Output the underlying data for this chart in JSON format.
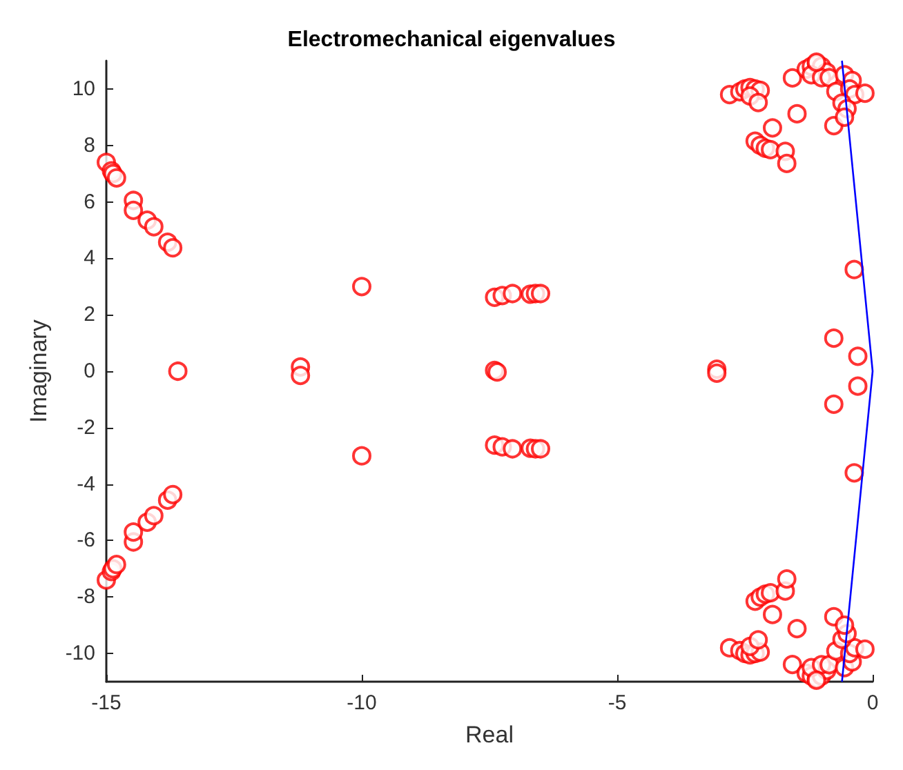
{
  "chart_data": {
    "type": "scatter",
    "title": "Electromechanical eigenvalues",
    "xlabel": "Real",
    "ylabel": "Imaginary",
    "xlim": [
      -15,
      0
    ],
    "xticks": [
      -15,
      -10,
      -5,
      0
    ],
    "ylim": [
      -11,
      11
    ],
    "yticks": [
      -10,
      -8,
      -6,
      -4,
      -2,
      0,
      2,
      4,
      6,
      8,
      10
    ],
    "marker": "circle",
    "series": [
      {
        "color": "#ff0000",
        "x": [
          -15.0,
          -14.9,
          -14.87,
          -14.8,
          -14.47,
          -14.47,
          -14.2,
          -14.07,
          -13.8,
          -13.7,
          -13.6,
          -11.2,
          -10.0,
          -7.4,
          -7.25,
          -7.05,
          -6.7,
          -6.6,
          -6.5,
          -7.4,
          -7.35,
          -3.05,
          -2.8,
          -2.6,
          -2.5,
          -2.4,
          -2.3,
          -2.2,
          -2.4,
          -2.24,
          -1.96,
          -1.48,
          -2.3,
          -2.2,
          -2.1,
          -2.0,
          -1.71,
          -1.68,
          -1.57,
          -1.3,
          -1.2,
          -1.1,
          -1.0,
          -0.9,
          -1.2,
          -1.0,
          -0.85,
          -1.1,
          -0.72,
          -0.76,
          -0.55,
          -0.4,
          -0.45,
          -0.35,
          -0.15,
          -0.6,
          -0.5,
          -0.55,
          -0.36,
          -0.76,
          -0.29,
          -15.0,
          -14.9,
          -14.87,
          -14.8,
          -14.47,
          -14.47,
          -14.2,
          -14.07,
          -13.8,
          -13.7,
          -11.2,
          -10.0,
          -7.4,
          -7.25,
          -7.05,
          -6.7,
          -6.6,
          -6.5,
          -3.05,
          -2.8,
          -2.6,
          -2.5,
          -2.4,
          -2.3,
          -2.2,
          -2.4,
          -2.24,
          -1.96,
          -1.48,
          -2.3,
          -2.2,
          -2.1,
          -2.0,
          -1.71,
          -1.68,
          -1.57,
          -1.3,
          -1.2,
          -1.1,
          -1.0,
          -0.9,
          -1.2,
          -1.0,
          -0.85,
          -1.1,
          -0.72,
          -0.76,
          -0.55,
          -0.4,
          -0.45,
          -0.35,
          -0.15,
          -0.6,
          -0.5,
          -0.55,
          -0.36,
          -0.76,
          -0.29
        ],
        "values": [
          7.4,
          7.1,
          7.0,
          6.85,
          6.05,
          5.7,
          5.35,
          5.12,
          4.57,
          4.37,
          0,
          0.15,
          3.0,
          2.62,
          2.68,
          2.75,
          2.73,
          2.75,
          2.75,
          0.03,
          -0.03,
          0.07,
          9.8,
          9.9,
          10.0,
          10.05,
          10.0,
          9.95,
          9.75,
          9.52,
          8.62,
          9.12,
          8.15,
          8.0,
          7.9,
          7.85,
          7.79,
          7.36,
          10.39,
          10.7,
          10.8,
          10.9,
          10.8,
          10.6,
          10.5,
          10.4,
          10.4,
          10.95,
          9.91,
          8.7,
          10.5,
          10.3,
          10.0,
          9.8,
          9.85,
          9.5,
          9.3,
          9.0,
          3.6,
          1.17,
          0.53,
          -7.4,
          -7.1,
          -7.0,
          -6.85,
          -6.05,
          -5.7,
          -5.35,
          -5.12,
          -4.57,
          -4.37,
          -0.15,
          -3.0,
          -2.62,
          -2.68,
          -2.75,
          -2.73,
          -2.75,
          -2.75,
          -0.07,
          -9.8,
          -9.9,
          -10.0,
          -10.05,
          -10.0,
          -9.95,
          -9.75,
          -9.52,
          -8.62,
          -9.12,
          -8.15,
          -8.0,
          -7.9,
          -7.85,
          -7.79,
          -7.36,
          -10.39,
          -10.7,
          -10.8,
          -10.9,
          -10.8,
          -10.6,
          -10.5,
          -10.4,
          -10.4,
          -10.95,
          -9.91,
          -8.7,
          -10.5,
          -10.3,
          -10.0,
          -9.8,
          -9.85,
          -9.5,
          -9.3,
          -9.0,
          -3.6,
          -1.17,
          -0.53
        ]
      },
      {
        "type": "line",
        "color": "#0000ff",
        "marker": "none",
        "line_style": "solid",
        "x": [
          -0.6,
          0,
          -0.6
        ],
        "values": [
          11,
          0,
          -11
        ]
      }
    ]
  }
}
